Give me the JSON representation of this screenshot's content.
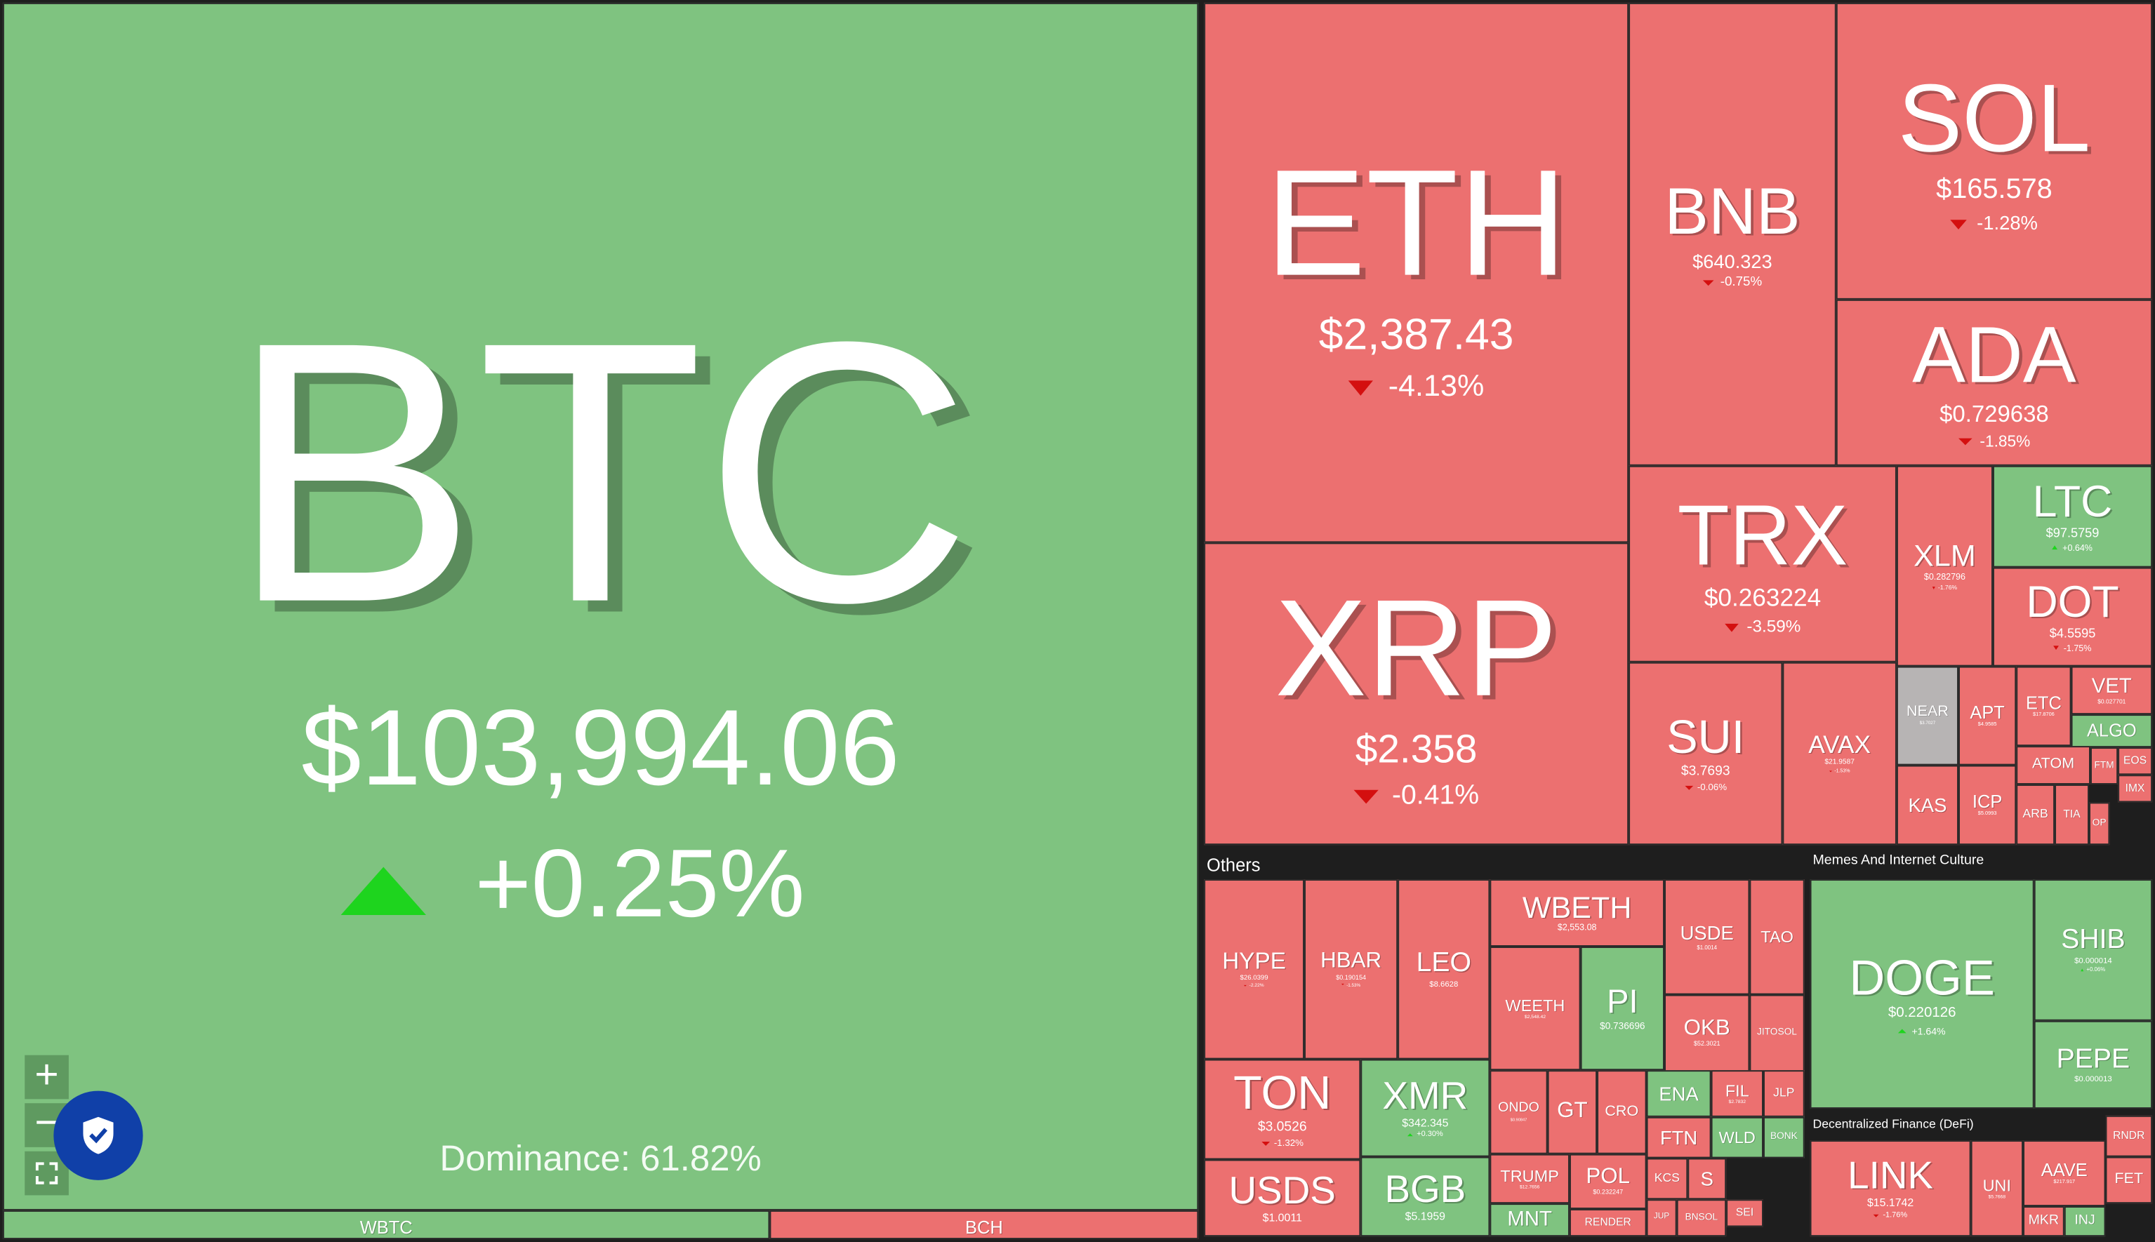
{
  "dominance": "Dominance: 61.82%",
  "sections": {
    "others": "Others",
    "memes": "Memes And Internet Culture",
    "defi": "Decentralized Finance (DeFi)"
  },
  "controls": {
    "zoom_in": "+",
    "zoom_out": "−"
  },
  "tiles": [
    {
      "symbol": "BTC",
      "price": "$103,994.06",
      "change": "+0.25%",
      "tone": "up"
    },
    {
      "symbol": "WBTC",
      "tone": "up"
    },
    {
      "symbol": "BCH",
      "tone": "down"
    },
    {
      "symbol": "ETH",
      "price": "$2,387.43",
      "change": "-4.13%",
      "tone": "down"
    },
    {
      "symbol": "XRP",
      "price": "$2.358",
      "change": "-0.41%",
      "tone": "down"
    },
    {
      "symbol": "BNB",
      "price": "$640.323",
      "change": "-0.75%",
      "tone": "down"
    },
    {
      "symbol": "SOL",
      "price": "$165.578",
      "change": "-1.28%",
      "tone": "down"
    },
    {
      "symbol": "ADA",
      "price": "$0.729638",
      "change": "-1.85%",
      "tone": "down"
    },
    {
      "symbol": "TRX",
      "price": "$0.263224",
      "change": "-3.59%",
      "tone": "down"
    },
    {
      "symbol": "XLM",
      "price": "$0.282796",
      "change": "-1.76%",
      "tone": "down"
    },
    {
      "symbol": "LTC",
      "price": "$97.5759",
      "change": "+0.64%",
      "tone": "up"
    },
    {
      "symbol": "DOT",
      "price": "$4.5595",
      "change": "-1.75%",
      "tone": "down"
    },
    {
      "symbol": "SUI",
      "price": "$3.7693",
      "change": "-0.06%",
      "tone": "down"
    },
    {
      "symbol": "AVAX",
      "price": "$21.9587",
      "change": "-1.53%",
      "tone": "down"
    },
    {
      "symbol": "NEAR",
      "price": "$3.7027",
      "tone": "flat"
    },
    {
      "symbol": "APT",
      "price": "$4.9585",
      "tone": "down"
    },
    {
      "symbol": "ETC",
      "price": "$17.8706",
      "tone": "down"
    },
    {
      "symbol": "VET",
      "price": "$0.027701",
      "tone": "down"
    },
    {
      "symbol": "ALGO",
      "tone": "up"
    },
    {
      "symbol": "ATOM",
      "tone": "down"
    },
    {
      "symbol": "FTM",
      "tone": "down"
    },
    {
      "symbol": "EOS",
      "tone": "down"
    },
    {
      "symbol": "IMX",
      "tone": "down"
    },
    {
      "symbol": "KAS",
      "tone": "down"
    },
    {
      "symbol": "ICP",
      "price": "$5.0993",
      "tone": "down"
    },
    {
      "symbol": "ARB",
      "tone": "down"
    },
    {
      "symbol": "TIA",
      "tone": "down"
    },
    {
      "symbol": "OP",
      "tone": "down"
    },
    {
      "symbol": "HYPE",
      "price": "$26.0399",
      "change": "-2.22%",
      "tone": "down"
    },
    {
      "symbol": "HBAR",
      "price": "$0.190154",
      "change": "-1.53%",
      "tone": "down"
    },
    {
      "symbol": "LEO",
      "price": "$8.6628",
      "tone": "down"
    },
    {
      "symbol": "WBETH",
      "price": "$2,553.08",
      "tone": "down"
    },
    {
      "symbol": "USDE",
      "price": "$1.0014",
      "tone": "down"
    },
    {
      "symbol": "TAO",
      "tone": "down"
    },
    {
      "symbol": "WEETH",
      "price": "$2,548.42",
      "tone": "down"
    },
    {
      "symbol": "PI",
      "price": "$0.736696",
      "tone": "up"
    },
    {
      "symbol": "OKB",
      "price": "$52.3021",
      "tone": "down"
    },
    {
      "symbol": "JITOSOL",
      "tone": "down"
    },
    {
      "symbol": "TON",
      "price": "$3.0526",
      "change": "-1.32%",
      "tone": "down"
    },
    {
      "symbol": "XMR",
      "price": "$342.345",
      "change": "+0.30%",
      "tone": "up"
    },
    {
      "symbol": "USDS",
      "price": "$1.0011",
      "tone": "down"
    },
    {
      "symbol": "BGB",
      "price": "$5.1959",
      "tone": "up"
    },
    {
      "symbol": "ONDO",
      "price": "$0.90847",
      "tone": "down"
    },
    {
      "symbol": "GT",
      "tone": "down"
    },
    {
      "symbol": "CRO",
      "tone": "down"
    },
    {
      "symbol": "ENA",
      "tone": "up"
    },
    {
      "symbol": "FIL",
      "price": "$2.7832",
      "tone": "down"
    },
    {
      "symbol": "JLP",
      "tone": "down"
    },
    {
      "symbol": "FTN",
      "tone": "down"
    },
    {
      "symbol": "WLD",
      "tone": "up"
    },
    {
      "symbol": "BONK",
      "tone": "up"
    },
    {
      "symbol": "TRUMP",
      "price": "$12.7656",
      "tone": "down"
    },
    {
      "symbol": "POL",
      "price": "$0.232247",
      "tone": "down"
    },
    {
      "symbol": "MNT",
      "tone": "up"
    },
    {
      "symbol": "RENDER",
      "tone": "down"
    },
    {
      "symbol": "KCS",
      "tone": "down"
    },
    {
      "symbol": "S",
      "tone": "down"
    },
    {
      "symbol": "JUP",
      "tone": "down"
    },
    {
      "symbol": "BNSOL",
      "tone": "down"
    },
    {
      "symbol": "SEI",
      "tone": "down"
    },
    {
      "symbol": "DOGE",
      "price": "$0.220126",
      "change": "+1.64%",
      "tone": "up"
    },
    {
      "symbol": "SHIB",
      "price": "$0.000014",
      "change": "+0.06%",
      "tone": "up"
    },
    {
      "symbol": "PEPE",
      "price": "$0.000013",
      "tone": "up"
    },
    {
      "symbol": "LINK",
      "price": "$15.1742",
      "change": "-1.76%",
      "tone": "down"
    },
    {
      "symbol": "UNI",
      "price": "$5.7668",
      "tone": "down"
    },
    {
      "symbol": "AAVE",
      "price": "$217.917",
      "tone": "down"
    },
    {
      "symbol": "MKR",
      "tone": "down"
    },
    {
      "symbol": "INJ",
      "tone": "up"
    },
    {
      "symbol": "RNDR",
      "tone": "down"
    },
    {
      "symbol": "FET",
      "tone": "down"
    }
  ]
}
